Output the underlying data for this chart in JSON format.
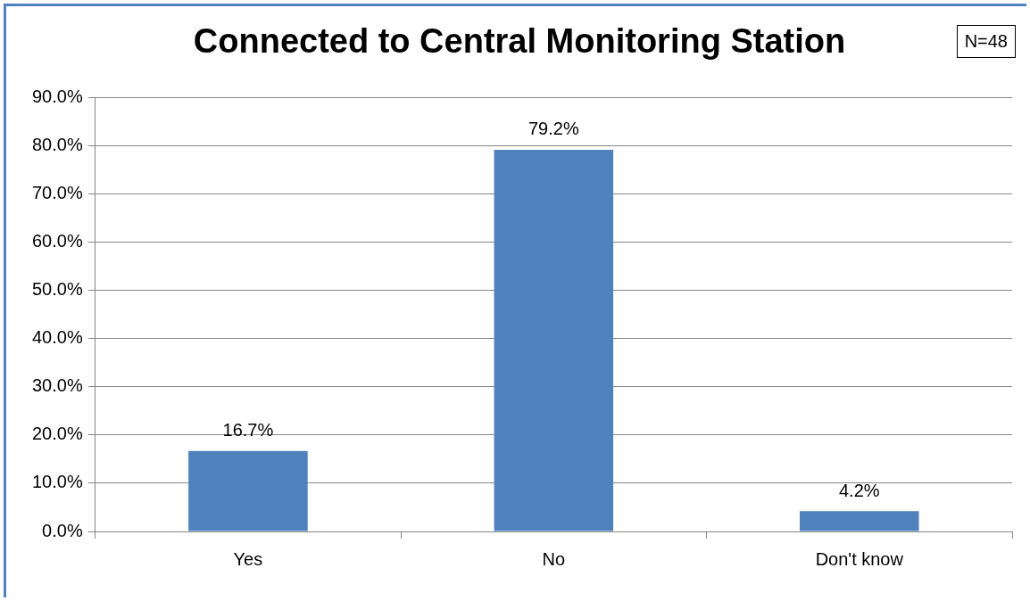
{
  "chart_data": {
    "type": "bar",
    "title": "Connected to Central Monitoring Station",
    "annotations": [
      "N=48"
    ],
    "categories": [
      "Yes",
      "No",
      "Don't know"
    ],
    "values": [
      16.7,
      79.2,
      4.2
    ],
    "color": "#4f81bd",
    "value_labels": [
      "16.7%",
      "79.2%",
      "4.2%"
    ],
    "ylim": [
      0,
      90
    ],
    "yticks": [
      {
        "value": 0,
        "label": "0.0%"
      },
      {
        "value": 10,
        "label": "10.0%"
      },
      {
        "value": 20,
        "label": "20.0%"
      },
      {
        "value": 30,
        "label": "30.0%"
      },
      {
        "value": 40,
        "label": "40.0%"
      },
      {
        "value": 50,
        "label": "50.0%"
      },
      {
        "value": 60,
        "label": "60.0%"
      },
      {
        "value": 70,
        "label": "70.0%"
      },
      {
        "value": 80,
        "label": "80.0%"
      },
      {
        "value": 90,
        "label": "90.0%"
      }
    ],
    "grid": "y",
    "legend": false
  }
}
